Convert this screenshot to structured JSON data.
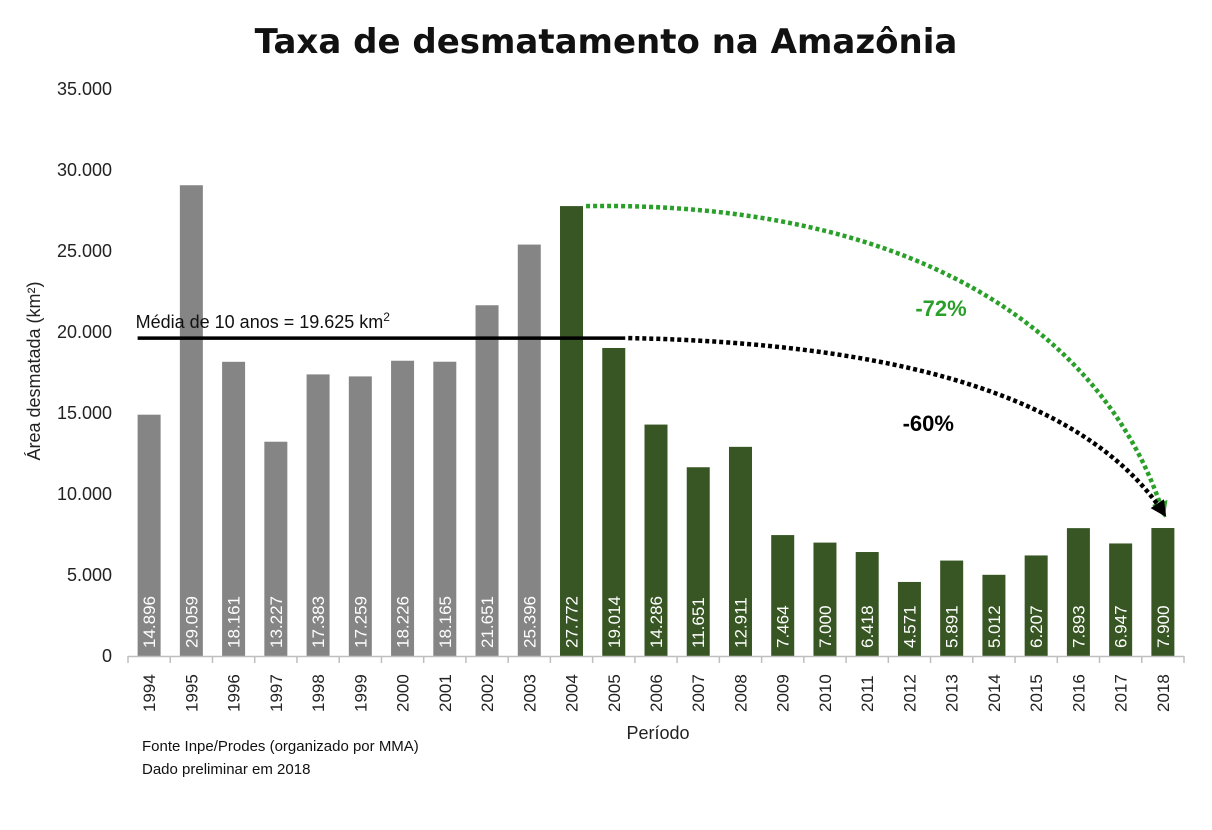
{
  "chart_data": {
    "type": "bar",
    "title": "Taxa de desmatamento na Amazônia",
    "xlabel": "Período",
    "ylabel": "Área desmatada (km²)",
    "ylim": [
      0,
      35000
    ],
    "yticks": [
      "0",
      "5.000",
      "10.000",
      "15.000",
      "20.000",
      "25.000",
      "30.000",
      "35.000"
    ],
    "grid": false,
    "categories": [
      "1994",
      "1995",
      "1996",
      "1997",
      "1998",
      "1999",
      "2000",
      "2001",
      "2002",
      "2003",
      "2004",
      "2005",
      "2006",
      "2007",
      "2008",
      "2009",
      "2010",
      "2011",
      "2012",
      "2013",
      "2014",
      "2015",
      "2016",
      "2017",
      "2018"
    ],
    "values": [
      14896,
      29059,
      18161,
      13227,
      17383,
      17259,
      18226,
      18165,
      21651,
      25396,
      27772,
      19014,
      14286,
      11651,
      12911,
      7464,
      7000,
      6418,
      4571,
      5891,
      5012,
      6207,
      7893,
      6947,
      7900
    ],
    "value_labels": [
      "14.896",
      "29.059",
      "18.161",
      "13.227",
      "17.383",
      "17.259",
      "18.226",
      "18.165",
      "21.651",
      "25.396",
      "27.772",
      "19.014",
      "14.286",
      "11.651",
      "12.911",
      "7.464",
      "7.000",
      "6.418",
      "4.571",
      "5.891",
      "5.012",
      "6.207",
      "7.893",
      "6.947",
      "7.900"
    ],
    "colors": {
      "gray": "#858585",
      "green": "#375623",
      "arrow_green": "#2aa02a",
      "arrow_black": "#000000"
    },
    "green_from": "2004",
    "mean_line": {
      "value": 19625,
      "from": "1994",
      "to": "2005",
      "label": "Média de 10 anos = 19.625 km²"
    },
    "annotations": [
      {
        "text": "-72%",
        "from": "2004",
        "to": "2018",
        "color": "#2aa02a"
      },
      {
        "text": "-60%",
        "from": "2005",
        "to": "2018",
        "color": "#000000"
      }
    ]
  },
  "footnote": {
    "line1": "Fonte Inpe/Prodes (organizado por MMA)",
    "line2": "Dado preliminar em 2018"
  }
}
